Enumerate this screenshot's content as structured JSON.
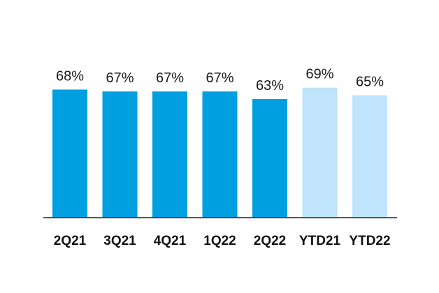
{
  "chart_data": {
    "type": "bar",
    "categories": [
      "2Q21",
      "3Q21",
      "4Q21",
      "1Q22",
      "2Q22",
      "YTD21",
      "YTD22"
    ],
    "values": [
      68,
      67,
      67,
      67,
      63,
      69,
      65
    ],
    "value_labels": [
      "68%",
      "67%",
      "67%",
      "67%",
      "63%",
      "69%",
      "65%"
    ],
    "unit": "%",
    "ylim": [
      0,
      80
    ],
    "grid": false,
    "title": "",
    "xlabel": "",
    "ylabel": "",
    "colors": {
      "quarter": "#009fdf",
      "ytd": "#bfe4fb",
      "axis": "#222222"
    },
    "bar_style": [
      "quarter",
      "quarter",
      "quarter",
      "quarter",
      "quarter",
      "ytd",
      "ytd"
    ]
  }
}
